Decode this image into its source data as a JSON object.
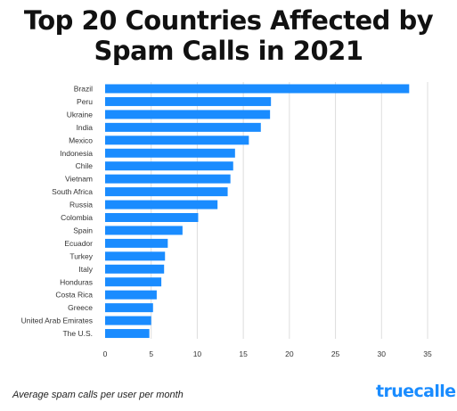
{
  "title_line1": "Top 20 Countries Affected by",
  "title_line2": "Spam Calls in 2021",
  "footer_note": "Average spam calls per user per month",
  "brand": "truecaller",
  "colors": {
    "bar": "#1a8cff",
    "grid": "#dddddd",
    "brand": "#1a8cff",
    "text": "#333333"
  },
  "chart_data": {
    "type": "bar",
    "orientation": "horizontal",
    "title": "Top 20 Countries Affected by Spam Calls in 2021",
    "xlabel": "Average spam calls per user per month",
    "categories": [
      "Brazil",
      "Peru",
      "Ukraine",
      "India",
      "Mexico",
      "Indonesia",
      "Chile",
      "Vietnam",
      "South Africa",
      "Russia",
      "Colombia",
      "Spain",
      "Ecuador",
      "Turkey",
      "Italy",
      "Honduras",
      "Costa Rica",
      "Greece",
      "United Arab Emirates",
      "The U.S."
    ],
    "values": [
      33.0,
      18.0,
      17.9,
      16.9,
      15.6,
      14.1,
      13.9,
      13.6,
      13.3,
      12.2,
      10.1,
      8.4,
      6.8,
      6.5,
      6.4,
      6.1,
      5.6,
      5.2,
      5.0,
      4.8
    ],
    "xlim": [
      0,
      35
    ],
    "xticks": [
      "0",
      "5",
      "10",
      "15",
      "20",
      "25",
      "30",
      "35"
    ],
    "grid": true
  }
}
